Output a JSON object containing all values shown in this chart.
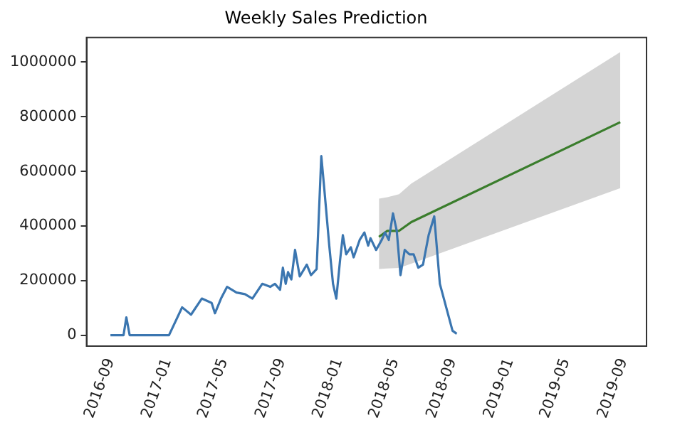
{
  "chart_data": {
    "type": "line",
    "title": "Weekly Sales Prediction",
    "xlim": [
      "2016-07-12",
      "2019-10-20"
    ],
    "ylim": [
      -40000,
      1090000
    ],
    "xticks": [
      "2016-09",
      "2017-01",
      "2017-05",
      "2017-09",
      "2018-01",
      "2018-05",
      "2018-09",
      "2019-01",
      "2019-05",
      "2019-09"
    ],
    "yticks": [
      0,
      200000,
      400000,
      600000,
      800000,
      1000000
    ],
    "grid": false,
    "legend": false,
    "marker": "none",
    "line_style": "solid",
    "series": [
      {
        "color": "#3b76b0",
        "x": [
          "2016-09-01",
          "2016-09-29",
          "2016-10-05",
          "2016-10-12",
          "2017-01-04",
          "2017-02-01",
          "2017-02-20",
          "2017-03-15",
          "2017-04-05",
          "2017-04-12",
          "2017-04-25",
          "2017-05-08",
          "2017-05-28",
          "2017-06-15",
          "2017-07-01",
          "2017-07-22",
          "2017-08-08",
          "2017-08-18",
          "2017-08-29",
          "2017-09-04",
          "2017-09-10",
          "2017-09-15",
          "2017-09-22",
          "2017-09-30",
          "2017-10-10",
          "2017-10-25",
          "2017-11-03",
          "2017-11-15",
          "2017-11-25",
          "2017-12-01",
          "2017-12-12",
          "2017-12-20",
          "2017-12-27",
          "2018-01-04",
          "2018-01-10",
          "2018-01-17",
          "2018-01-27",
          "2018-02-02",
          "2018-02-15",
          "2018-02-25",
          "2018-03-05",
          "2018-03-10",
          "2018-03-22",
          "2018-04-03",
          "2018-04-10",
          "2018-04-18",
          "2018-04-27",
          "2018-05-05",
          "2018-05-13",
          "2018-05-22",
          "2018-06-01",
          "2018-06-10",
          "2018-06-20",
          "2018-06-30",
          "2018-07-12",
          "2018-07-24",
          "2018-08-05",
          "2018-09-01",
          "2018-09-10"
        ],
        "values": [
          0,
          0,
          65000,
          0,
          0,
          102000,
          75000,
          134000,
          118000,
          80000,
          134000,
          177000,
          156000,
          150000,
          134000,
          188000,
          177000,
          188000,
          166000,
          247000,
          188000,
          231000,
          204000,
          312000,
          215000,
          258000,
          220000,
          242000,
          656000,
          543000,
          328000,
          188000,
          134000,
          274000,
          366000,
          296000,
          322000,
          285000,
          349000,
          376000,
          328000,
          355000,
          312000,
          349000,
          376000,
          349000,
          446000,
          382000,
          220000,
          312000,
          296000,
          296000,
          247000,
          258000,
          366000,
          435000,
          188000,
          16000,
          5000
        ]
      },
      {
        "color": "#3a7d2c",
        "x": [
          "2018-03-28",
          "2018-04-15",
          "2018-05-10",
          "2018-06-05",
          "2019-08-25"
        ],
        "values": [
          360000,
          382000,
          382000,
          414000,
          780000
        ],
        "lower": [
          242000,
          244000,
          246000,
          262000,
          538000
        ],
        "upper": [
          500000,
          505000,
          516000,
          555000,
          1037000
        ]
      }
    ]
  }
}
